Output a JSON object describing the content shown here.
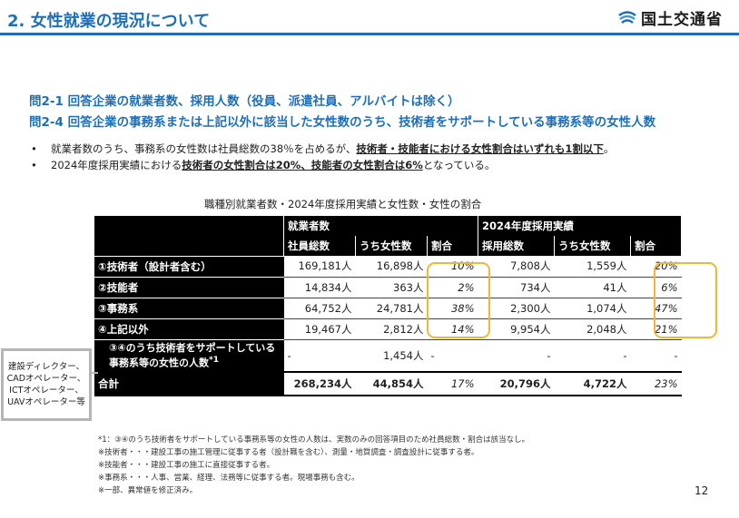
{
  "header": {
    "title": "2. 女性就業の現況について",
    "logo_text": "国土交通省"
  },
  "questions": [
    "問2-1 回答企業の就業者数、採用人数（役員、派遣社員、アルバイトは除く）",
    "問2-4 回答企業の事務系または上記以外に該当した女性数のうち、技術者をサポートしている事務系等の女性人数"
  ],
  "bullets": [
    {
      "pre": "就業者数のうち、事務系の女性数は社員総数の38％を占めるが、",
      "bold": "技術者・技能者における女性割合はいずれも1割以下",
      "post": "。"
    },
    {
      "pre": "2024年度採用実績における",
      "bold": "技術者の女性割合は20%、技能者の女性割合は6%",
      "post": "となっている。"
    }
  ],
  "table": {
    "title": "職種別就業者数・2024年度採用実績と女性数・女性の割合",
    "group_headers": [
      "就業者数",
      "2024年度採用実績"
    ],
    "col_headers": [
      "社員総数",
      "うち女性数",
      "割合",
      "採用総数",
      "うち女性数",
      "割合"
    ],
    "rows": [
      {
        "label": "①技術者（設計者含む）",
        "cells": [
          "169,181人",
          "16,898人",
          "10%",
          "7,808人",
          "1,559人",
          "20%"
        ]
      },
      {
        "label": "②技能者",
        "cells": [
          "14,834人",
          "363人",
          "2%",
          "734人",
          "41人",
          "6%"
        ]
      },
      {
        "label": "③事務系",
        "cells": [
          "64,752人",
          "24,781人",
          "38%",
          "2,300人",
          "1,074人",
          "47%"
        ]
      },
      {
        "label": "④上記以外",
        "cells": [
          "19,467人",
          "2,812人",
          "14%",
          "9,954人",
          "2,048人",
          "21%"
        ]
      }
    ],
    "sub_row": {
      "label": "③④のうち技術者をサポートしている事務系等の女性の人数",
      "mark": "*1",
      "cells": [
        "-",
        "1,454人",
        "-",
        "-",
        "-",
        "-"
      ]
    },
    "total": {
      "label": "合計",
      "cells": [
        "268,234人",
        "44,854人",
        "17%",
        "20,796人",
        "4,722人",
        "23%"
      ]
    }
  },
  "side_note": "建設ディレクター、CADオペレーター、ICTオペレーター、UAVオペレーター等",
  "notes": [
    "*1：③④のうち技術者をサポートしている事務系等の女性の人数は、実数のみの回答項目のため社員総数・割合は該当なし。",
    "※技術者・・・建設工事の施工管理に従事する者（設計職を含む）、測量・地質調査・調査設計に従事する者。",
    "※技能者・・・建設工事の施工に直接従事する者。",
    "※事務系・・・人事、営業、経理、法務等に従事する者。現場事務も含む。",
    "※一部、異常値を修正済み。"
  ],
  "page_number": "12",
  "colors": {
    "accent": "#1d6fb8",
    "highlight": "#f5b534"
  }
}
